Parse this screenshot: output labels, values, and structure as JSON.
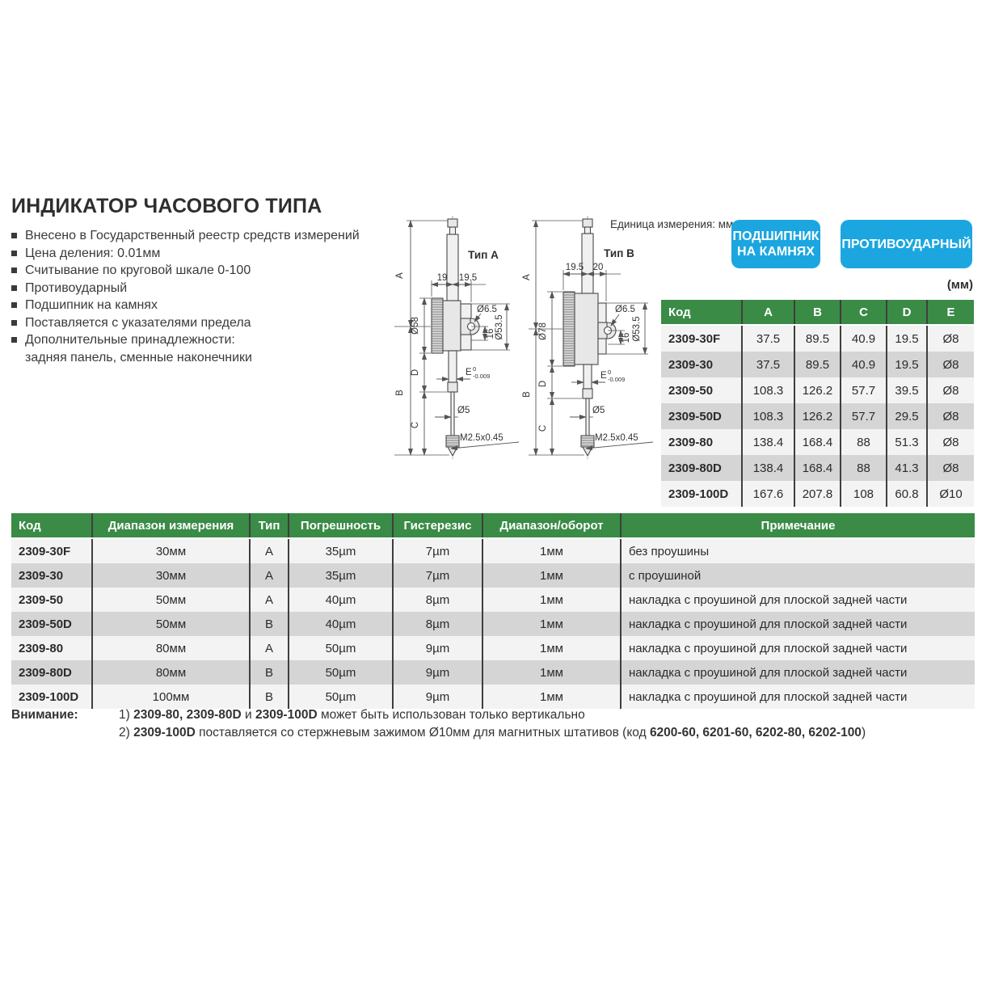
{
  "page": {
    "title": "ИНДИКАТОР ЧАСОВОГО ТИПА",
    "bullets": [
      {
        "text": "Внесено в Государственный реестр средств измерений",
        "marker": true
      },
      {
        "text": "Цена деления: 0.01мм",
        "marker": true
      },
      {
        "text": "Считывание по круговой шкале 0-100",
        "marker": true
      },
      {
        "text": "Противоударный",
        "marker": true
      },
      {
        "text": "Подшипник на камнях",
        "marker": true
      },
      {
        "text": "Поставляется с указателями предела",
        "marker": true
      },
      {
        "text": "Дополнительные принадлежности:",
        "marker": true
      },
      {
        "text": "задняя панель, сменные наконечники",
        "marker": false
      }
    ],
    "unit_note": "Единица измерения: мм",
    "badges": [
      {
        "lines": [
          "ПОДШИПНИК",
          "НА КАМНЯХ"
        ]
      },
      {
        "lines": [
          "ПРОТИВОУДАРНЫЙ"
        ]
      }
    ]
  },
  "drawing_a": {
    "type_label": "Тип A",
    "dim_a": "A",
    "dim_b": "B",
    "dim_c": "C",
    "dim_d": "D",
    "depth_front": "19",
    "depth_back": "19.5",
    "dial_dia": "Ø58",
    "lug_hole_dia": "Ø6.5",
    "lug_offset": "16",
    "back_plate_dia": "Ø53.5",
    "stem_label": "E",
    "stem_tol_upper": "0",
    "stem_tol_lower": "-0.009",
    "probe_dia": "Ø5",
    "tip_thread": "M2.5x0.45"
  },
  "drawing_b": {
    "type_label": "Тип B",
    "dim_a": "A",
    "dim_b": "B",
    "dim_c": "C",
    "dim_d": "D",
    "depth_front": "19.5",
    "depth_back": "20",
    "dial_dia": "Ø78",
    "lug_hole_dia": "Ø6.5",
    "lug_offset": "16",
    "back_plate_dia": "Ø53.5",
    "stem_label": "E",
    "stem_tol_upper": "0",
    "stem_tol_lower": "-0.009",
    "probe_dia": "Ø5",
    "tip_thread": "M2.5x0.45"
  },
  "dim_table": {
    "unit_label": "(мм)",
    "headers": [
      "Код",
      "A",
      "B",
      "C",
      "D",
      "E"
    ],
    "rows": [
      [
        "2309-30F",
        "37.5",
        "89.5",
        "40.9",
        "19.5",
        "Ø8"
      ],
      [
        "2309-30",
        "37.5",
        "89.5",
        "40.9",
        "19.5",
        "Ø8"
      ],
      [
        "2309-50",
        "108.3",
        "126.2",
        "57.7",
        "39.5",
        "Ø8"
      ],
      [
        "2309-50D",
        "108.3",
        "126.2",
        "57.7",
        "29.5",
        "Ø8"
      ],
      [
        "2309-80",
        "138.4",
        "168.4",
        "88",
        "51.3",
        "Ø8"
      ],
      [
        "2309-80D",
        "138.4",
        "168.4",
        "88",
        "41.3",
        "Ø8"
      ],
      [
        "2309-100D",
        "167.6",
        "207.8",
        "108",
        "60.8",
        "Ø10"
      ]
    ]
  },
  "spec_table": {
    "headers": [
      "Код",
      "Диапазон измерения",
      "Тип",
      "Погрешность",
      "Гистерезис",
      "Диапазон/оборот",
      "Примечание"
    ],
    "rows": [
      [
        "2309-30F",
        "30мм",
        "A",
        "35µm",
        "7µm",
        "1мм",
        "без проушины"
      ],
      [
        "2309-30",
        "30мм",
        "A",
        "35µm",
        "7µm",
        "1мм",
        "с проушиной"
      ],
      [
        "2309-50",
        "50мм",
        "A",
        "40µm",
        "8µm",
        "1мм",
        "накладка с проушиной для плоской задней части"
      ],
      [
        "2309-50D",
        "50мм",
        "B",
        "40µm",
        "8µm",
        "1мм",
        "накладка с проушиной для плоской задней части"
      ],
      [
        "2309-80",
        "80мм",
        "A",
        "50µm",
        "9µm",
        "1мм",
        "накладка с проушиной для плоской задней части"
      ],
      [
        "2309-80D",
        "80мм",
        "B",
        "50µm",
        "9µm",
        "1мм",
        "накладка с проушиной для плоской задней части"
      ],
      [
        "2309-100D",
        "100мм",
        "B",
        "50µm",
        "9µm",
        "1мм",
        "накладка с проушиной для плоской задней части"
      ]
    ]
  },
  "notes": {
    "label": "Внимание:",
    "items": [
      {
        "segments": [
          {
            "t": "1) ",
            "b": false
          },
          {
            "t": "2309-80, 2309-80D",
            "b": true
          },
          {
            "t": " и ",
            "b": false
          },
          {
            "t": "2309-100D",
            "b": true
          },
          {
            "t": " может быть использован только вертикально",
            "b": false
          }
        ]
      },
      {
        "segments": [
          {
            "t": "2) ",
            "b": false
          },
          {
            "t": "2309-100D",
            "b": true
          },
          {
            "t": " поставляется со стержневым зажимом Ø10мм для магнитных штативов (код ",
            "b": false
          },
          {
            "t": "6200-60, 6201-60, 6202-80, 6202-100",
            "b": true
          },
          {
            "t": ")",
            "b": false
          }
        ]
      }
    ]
  },
  "colors": {
    "green": "#3a8b46",
    "rowdark": "#d5d5d5",
    "rowlight": "#f3f3f3",
    "badge": "#1ba6e0"
  }
}
